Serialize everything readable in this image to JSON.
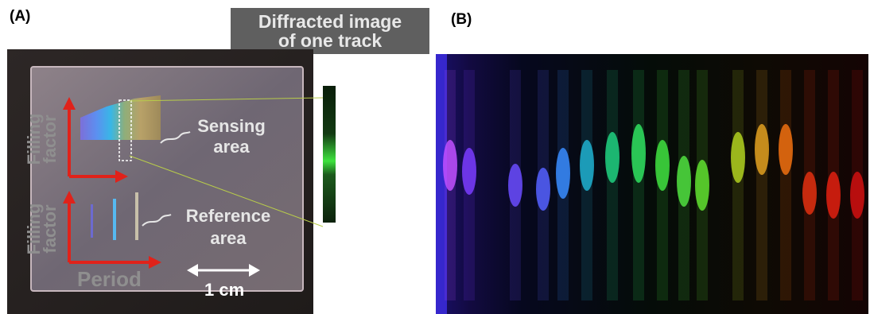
{
  "panels": {
    "a_label": "(A)",
    "b_label": "(B)"
  },
  "caption": {
    "line1": "Diffracted image",
    "line2": "of one track"
  },
  "photo_a": {
    "sensing_line1": "Sensing",
    "sensing_line2": "area",
    "reference_line1": "Reference",
    "reference_line2": "area",
    "axis_top_line1": "Filling",
    "axis_top_line2": "factor",
    "axis_bottom_line1": "Filling",
    "axis_bottom_line2": "factor",
    "period_label": "Period",
    "scale_label": "1 cm"
  },
  "colors": {
    "arrow": "#e0221a",
    "text_light": "#e6e6e6",
    "text_grey": "#8f8f8f",
    "caption_bg": "#5f5f5f"
  }
}
